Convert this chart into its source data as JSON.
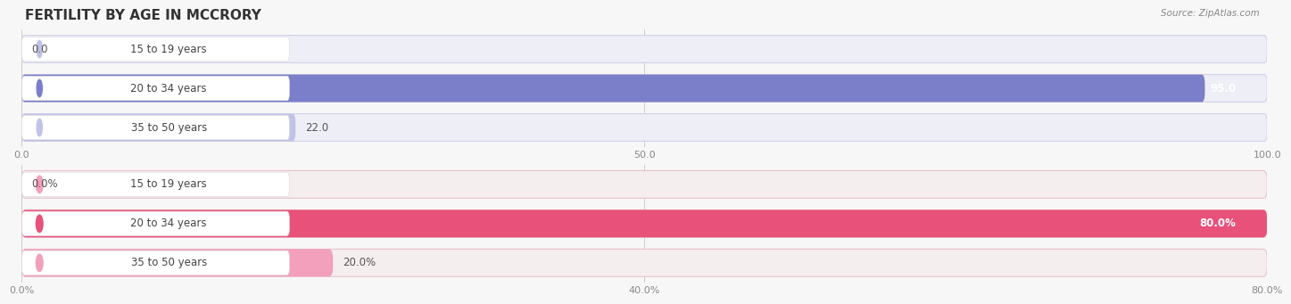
{
  "title": "FERTILITY BY AGE IN MCCRORY",
  "source": "Source: ZipAtlas.com",
  "top_chart": {
    "categories": [
      "15 to 19 years",
      "20 to 34 years",
      "35 to 50 years"
    ],
    "values": [
      0.0,
      95.0,
      22.0
    ],
    "xlim": [
      0,
      100
    ],
    "xticks": [
      0.0,
      50.0,
      100.0
    ],
    "xtick_labels": [
      "0.0",
      "50.0",
      "100.0"
    ],
    "bar_color_full": "#7B7EC8",
    "bar_color_light": "#C0C2E8",
    "bar_bg_color": "#EEEEF6",
    "bar_border_color": "#D0D0E8"
  },
  "bottom_chart": {
    "categories": [
      "15 to 19 years",
      "20 to 34 years",
      "35 to 50 years"
    ],
    "values": [
      0.0,
      80.0,
      20.0
    ],
    "xlim": [
      0,
      80
    ],
    "xticks": [
      0.0,
      40.0,
      80.0
    ],
    "xtick_labels": [
      "0.0%",
      "40.0%",
      "80.0%"
    ],
    "bar_color_full": "#E8517A",
    "bar_color_light": "#F2A0BC",
    "bar_bg_color": "#F5EEEF",
    "bar_border_color": "#E8C0CC"
  },
  "label_box_bg": "#ffffff",
  "label_box_border": "#e0e0e0",
  "label_text_color": "#444444",
  "value_text_dark": "#555555",
  "value_text_light": "#ffffff",
  "background_color": "#f7f7f7",
  "title_fontsize": 11,
  "label_fontsize": 8.5,
  "value_fontsize": 8.5,
  "tick_fontsize": 8
}
